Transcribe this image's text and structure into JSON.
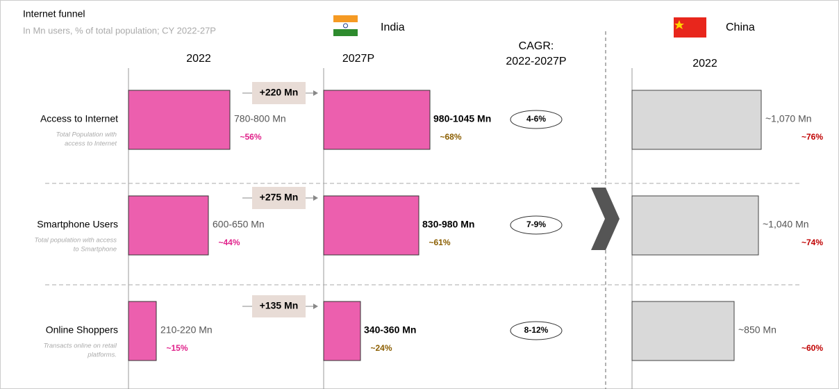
{
  "header": {
    "title": "Internet funnel",
    "subtitle": "In Mn users, % of total population; CY 2022-27P",
    "india": "India",
    "china": "China"
  },
  "columns": {
    "india_2022": "2022",
    "india_2027": "2027P",
    "cagr": [
      "CAGR:",
      "2022-2027P"
    ],
    "china_2022": "2022"
  },
  "rows": [
    {
      "label": "Access to Internet",
      "note": [
        "Total Population with",
        "access to Internet"
      ],
      "india_2022": "780-800 Mn",
      "india_2022_share": "~56%",
      "delta": "+220 Mn",
      "india_2027": "980-1045 Mn",
      "india_2027_share": "~68%",
      "cagr": "4-6%",
      "china_2022": "~1,070 Mn",
      "china_2022_share": "~76%"
    },
    {
      "label": "Smartphone Users",
      "note": [
        "Total population with access",
        "to  Smartphone"
      ],
      "india_2022": "600-650 Mn",
      "india_2022_share": "~44%",
      "delta": "+275 Mn",
      "india_2027": "830-980 Mn",
      "india_2027_share": "~61%",
      "cagr": "7-9%",
      "china_2022": "~1,040 Mn",
      "china_2022_share": "~74%"
    },
    {
      "label": "Online Shoppers",
      "note": [
        "Transacts online on retail",
        "platforms."
      ],
      "india_2022": "210-220 Mn",
      "india_2022_share": "~15%",
      "delta": "+135 Mn",
      "india_2027": "340-360 Mn",
      "india_2027_share": "~24%",
      "cagr": "8-12%",
      "china_2022": "~850 Mn",
      "china_2022_share": "~60%"
    }
  ]
}
